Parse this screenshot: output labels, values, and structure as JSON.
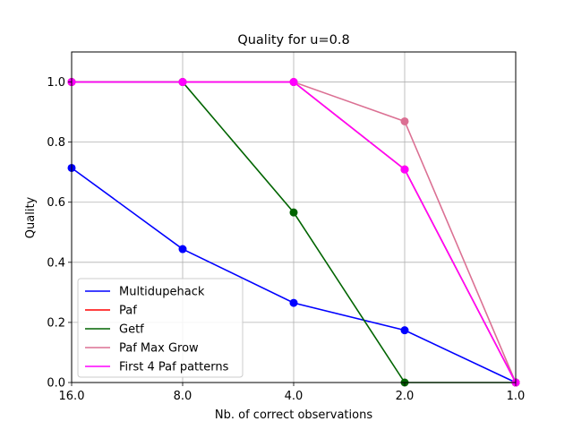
{
  "chart_data": {
    "type": "line",
    "title": "Quality for u=0.8",
    "xlabel": "Nb. of correct observations",
    "ylabel": "Quality",
    "categories": [
      "16.0",
      "8.0",
      "4.0",
      "2.0",
      "1.0"
    ],
    "xlim": [
      0,
      4
    ],
    "ylim": [
      0,
      1.1
    ],
    "yticks": [
      "0.0",
      "0.2",
      "0.4",
      "0.6",
      "0.8",
      "1.0"
    ],
    "grid": true,
    "legend_position": "lower-left",
    "series": [
      {
        "name": "Multidupehack",
        "color": "#0000ff",
        "values": [
          0.714,
          0.444,
          0.265,
          0.174,
          0.0
        ]
      },
      {
        "name": "Paf",
        "color": "#ff0000",
        "values": [
          1.0,
          1.0,
          1.0,
          0.709,
          0.0
        ]
      },
      {
        "name": "Getf",
        "color": "#006400",
        "values": [
          1.0,
          1.0,
          0.566,
          0.0,
          0.0
        ]
      },
      {
        "name": "Paf Max Grow",
        "color": "#db7093",
        "values": [
          1.0,
          1.0,
          1.0,
          0.869,
          0.0
        ]
      },
      {
        "name": "First 4 Paf patterns",
        "color": "#ff00ff",
        "values": [
          1.0,
          1.0,
          1.0,
          0.709,
          0.0
        ]
      }
    ]
  }
}
